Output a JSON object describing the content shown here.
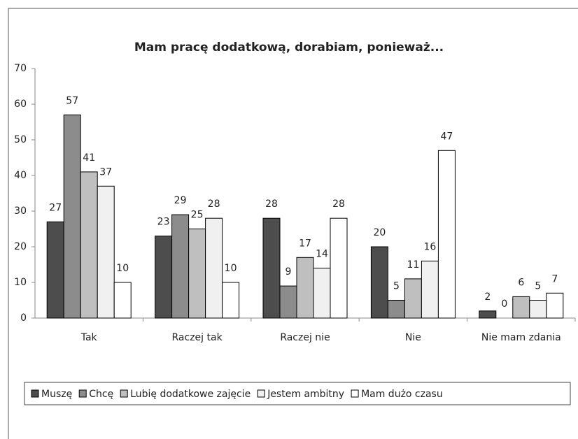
{
  "chart_data": {
    "type": "bar",
    "title": "Mam pracę dodatkową, dorabiam, ponieważ...",
    "categories": [
      "Tak",
      "Raczej tak",
      "Raczej nie",
      "Nie",
      "Nie mam zdania"
    ],
    "series": [
      {
        "name": "Muszę",
        "color": "#4d4d4d",
        "values": [
          27,
          23,
          28,
          20,
          2
        ]
      },
      {
        "name": "Chcę",
        "color": "#8c8c8c",
        "values": [
          57,
          29,
          9,
          5,
          0
        ]
      },
      {
        "name": "Lubię dodatkowe zajęcie",
        "color": "#bfbfbf",
        "values": [
          41,
          25,
          17,
          11,
          6
        ]
      },
      {
        "name": "Jestem ambitny",
        "color": "#f0f0f0",
        "values": [
          37,
          28,
          14,
          16,
          5
        ]
      },
      {
        "name": "Mam dużo czasu",
        "color": "#ffffff",
        "values": [
          10,
          10,
          28,
          47,
          7
        ]
      }
    ],
    "ylim": [
      0,
      70
    ],
    "yticks": [
      0,
      10,
      20,
      30,
      40,
      50,
      60,
      70
    ],
    "legend": "bottom"
  }
}
